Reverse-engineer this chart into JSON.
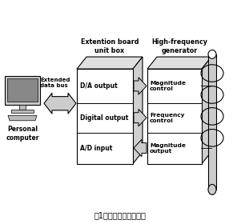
{
  "title": "図1　測定システム構成",
  "bg_color": "#ffffff",
  "fig_width": 3.01,
  "fig_height": 2.8,
  "dpi": 100,
  "box1_label": "Extention board\nunit box",
  "box2_label": "High-frequency\ngenerator",
  "pc_label": "Personal\ncomputer",
  "bus_label": "Extended\ndata bus",
  "box1_items": [
    "D/A output",
    "Digital output",
    "A/D input"
  ],
  "box2_items": [
    "Magnitude\ncontrol",
    "Frequency\ncontrol",
    "Magnitude\noutput"
  ],
  "arrow_dirs": [
    "right",
    "right",
    "left"
  ],
  "text_color": "#000000",
  "box_edge_color": "#000000",
  "box_face_color": "#ffffff",
  "arrow_color": "#aaaaaa",
  "xlim": [
    0,
    301
  ],
  "ylim": [
    0,
    260
  ]
}
